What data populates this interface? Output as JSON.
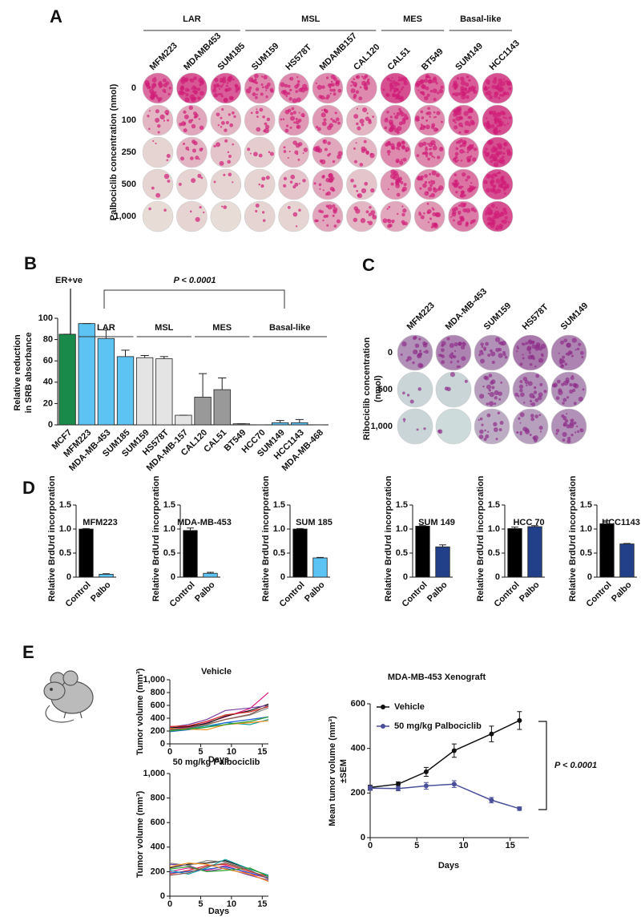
{
  "panel_labels": [
    "A",
    "B",
    "C",
    "D",
    "E"
  ],
  "panel_a": {
    "y_label": "Palbociclib concentration (nmol)",
    "concentrations": [
      "0",
      "100",
      "250",
      "500",
      "1,000"
    ],
    "groups": [
      {
        "name": "LAR",
        "cell_lines": [
          "MFM223",
          "MDAMB453",
          "SUM185"
        ]
      },
      {
        "name": "MSL",
        "cell_lines": [
          "SUM159",
          "HS578T",
          "MDAMB157",
          "CAL120"
        ]
      },
      {
        "name": "MES",
        "cell_lines": [
          "CAL51",
          "BT549"
        ]
      },
      {
        "name": "Basal-like",
        "cell_lines": [
          "SUM149",
          "HCC1143"
        ]
      }
    ]
  },
  "panel_c": {
    "y_label": [
      "Ribociclib concentration",
      "(nmol)"
    ],
    "concentrations": [
      "0",
      "500",
      "1,000"
    ],
    "cell_lines": [
      "MFM223",
      "MDA-MB-453",
      "SUM159",
      "HS578T",
      "SUM149"
    ]
  },
  "chart_data": [
    {
      "type": "bar",
      "y_label": [
        "Relative reduction",
        "in SRB absorbance"
      ],
      "er_label": "ER+ve",
      "p_value_label": "P < 0.0001",
      "groups": [
        "LAR",
        "MSL",
        "MES",
        "Basal-like"
      ],
      "categories": [
        "MCF7",
        "MFM223",
        "MDA-MB-453",
        "SUM185",
        "SUM159",
        "HS578T",
        "MDA-MB-157",
        "CAL120",
        "CAL51",
        "BT549",
        "HCC70",
        "SUM149",
        "HCC1143",
        "MDA-MB-468"
      ],
      "values": [
        85,
        95,
        81,
        64,
        63,
        62,
        9,
        26,
        33,
        1,
        0,
        2,
        2,
        0
      ],
      "errors": [
        0,
        0,
        8,
        6,
        2,
        2,
        0,
        22,
        11,
        0,
        0,
        2,
        3,
        0
      ],
      "colors": [
        "#1a8a4a",
        "#5cc3f2",
        "#5cc3f2",
        "#5cc3f2",
        "#e4e4e4",
        "#e4e4e4",
        "#e4e4e4",
        "#999999",
        "#999999",
        "#999999",
        "#5cc3f2",
        "#5cc3f2",
        "#5cc3f2",
        "#5cc3f2"
      ],
      "ylim": [
        0,
        100
      ],
      "yticks": [
        0,
        20,
        40,
        60,
        80,
        100
      ]
    },
    {
      "type": "bar",
      "title": "MFM223",
      "y_label": "Relative BrdUrd incorporation",
      "categories": [
        "Control",
        "Palbo"
      ],
      "values": [
        1.0,
        0.06
      ],
      "errors": [
        0.01,
        0.01
      ],
      "colors": [
        "#000000",
        "#5cc3f2"
      ],
      "ylim": [
        0,
        1.5
      ],
      "yticks": [
        0,
        0.5,
        {
          "value": 1,
          "label": "1.0"
        },
        1.5
      ]
    },
    {
      "type": "bar",
      "title": "MDA-MB-453",
      "y_label": "Relative BrdUrd incorporation",
      "categories": [
        "Control",
        "Palbo"
      ],
      "values": [
        0.97,
        0.08
      ],
      "errors": [
        0.05,
        0.02
      ],
      "colors": [
        "#000000",
        "#5cc3f2"
      ],
      "ylim": [
        0,
        1.5
      ],
      "yticks": [
        0,
        0.5,
        {
          "value": 1,
          "label": "1.0"
        },
        1.5
      ]
    },
    {
      "type": "bar",
      "title": "SUM 185",
      "y_label": "Relative BrdUrd incorporation",
      "categories": [
        "Control",
        "Palbo"
      ],
      "values": [
        1.0,
        0.4
      ],
      "errors": [
        0.01,
        0.01
      ],
      "colors": [
        "#000000",
        "#5cc3f2"
      ],
      "ylim": [
        0,
        1.5
      ],
      "yticks": [
        0,
        0.5,
        {
          "value": 1,
          "label": "1.0"
        },
        1.5
      ]
    },
    {
      "type": "bar",
      "title": "SUM 149",
      "y_label": "Relative BrdUrd incorporation",
      "categories": [
        "Control",
        "Palbo"
      ],
      "values": [
        1.06,
        0.63
      ],
      "errors": [
        0.01,
        0.04
      ],
      "colors": [
        "#000000",
        "#22408a"
      ],
      "ylim": [
        0,
        1.5
      ],
      "yticks": [
        0,
        0.5,
        {
          "value": 1,
          "label": "1.0"
        },
        1.5
      ]
    },
    {
      "type": "bar",
      "title": "HCC 70",
      "y_label": "Relative BrdUrd incorporation",
      "categories": [
        "Control",
        "Palbo"
      ],
      "values": [
        1.01,
        1.05
      ],
      "errors": [
        0.03,
        0.02
      ],
      "colors": [
        "#000000",
        "#22408a"
      ],
      "ylim": [
        0,
        1.5
      ],
      "yticks": [
        0,
        0.5,
        {
          "value": 1,
          "label": "1.0"
        },
        1.5
      ]
    },
    {
      "type": "bar",
      "title": "HCC1143",
      "y_label": "Relative BrdUrd incorporation",
      "categories": [
        "Control",
        "Palbo"
      ],
      "values": [
        1.11,
        0.69
      ],
      "errors": [
        0.07,
        0.01
      ],
      "colors": [
        "#000000",
        "#22408a"
      ],
      "ylim": [
        0,
        1.5
      ],
      "yticks": [
        0,
        0.5,
        {
          "value": 1,
          "label": "1.0"
        },
        1.5
      ]
    },
    {
      "type": "line",
      "title": "Vehicle",
      "x_label": "Days",
      "y_label": "Tumor volume (mm³)",
      "x": [
        0,
        3,
        6,
        9,
        13,
        16
      ],
      "xlim": [
        0,
        16
      ],
      "xticks": [
        0,
        5,
        10,
        15
      ],
      "ylim": [
        0,
        1000
      ],
      "yticks": [
        0,
        200,
        400,
        600,
        800,
        {
          "value": 1000,
          "label": "1,000"
        }
      ],
      "series": [
        {
          "color": "#e0218a",
          "values": [
            230,
            260,
            330,
            420,
            550,
            800
          ]
        },
        {
          "color": "#111111",
          "values": [
            250,
            270,
            320,
            430,
            520,
            620
          ]
        },
        {
          "color": "#7b3fa0",
          "values": [
            260,
            300,
            380,
            520,
            560,
            600
          ]
        },
        {
          "color": "#d62728",
          "values": [
            270,
            280,
            350,
            450,
            500,
            580
          ]
        },
        {
          "color": "#888888",
          "values": [
            200,
            240,
            310,
            380,
            450,
            560
          ]
        },
        {
          "color": "#17a2a2",
          "values": [
            210,
            240,
            280,
            330,
            300,
            380
          ]
        },
        {
          "color": "#1f5fd6",
          "values": [
            190,
            220,
            260,
            330,
            380,
            420
          ]
        },
        {
          "color": "#f28e1c",
          "values": [
            240,
            230,
            220,
            300,
            330,
            360
          ]
        },
        {
          "color": "#2ca02c",
          "values": [
            200,
            230,
            260,
            300,
            350,
            420
          ]
        },
        {
          "color": "#8c564b",
          "values": [
            220,
            250,
            300,
            380,
            460,
            600
          ]
        }
      ]
    },
    {
      "type": "line",
      "title": "50 mg/kg Palbociclib",
      "x_label": "Days",
      "y_label": "Tumor volume (mm³)",
      "x": [
        0,
        3,
        6,
        9,
        13,
        16
      ],
      "xlim": [
        0,
        16
      ],
      "xticks": [
        0,
        5,
        10,
        15
      ],
      "ylim": [
        0,
        1000
      ],
      "yticks": [
        0,
        200,
        400,
        600,
        800,
        {
          "value": 1000,
          "label": "1,000"
        }
      ],
      "series": [
        {
          "color": "#e0218a",
          "values": [
            200,
            230,
            210,
            250,
            180,
            150
          ]
        },
        {
          "color": "#111111",
          "values": [
            230,
            260,
            270,
            290,
            220,
            170
          ]
        },
        {
          "color": "#7b3fa0",
          "values": [
            260,
            250,
            200,
            230,
            170,
            130
          ]
        },
        {
          "color": "#d62728",
          "values": [
            180,
            210,
            250,
            260,
            200,
            160
          ]
        },
        {
          "color": "#888888",
          "values": [
            270,
            250,
            290,
            280,
            210,
            140
          ]
        },
        {
          "color": "#17a2a2",
          "values": [
            210,
            180,
            230,
            300,
            220,
            170
          ]
        },
        {
          "color": "#1f5fd6",
          "values": [
            190,
            200,
            220,
            240,
            190,
            150
          ]
        },
        {
          "color": "#f28e1c",
          "values": [
            240,
            270,
            260,
            220,
            180,
            120
          ]
        },
        {
          "color": "#2ca02c",
          "values": [
            220,
            240,
            200,
            210,
            230,
            160
          ]
        },
        {
          "color": "#8c564b",
          "values": [
            170,
            190,
            240,
            270,
            210,
            140
          ]
        }
      ]
    },
    {
      "type": "line",
      "title": "MDA-MB-453 Xenograft",
      "x_label": "Days",
      "y_label": [
        "Mean tumor volume (mm³)",
        "±SEM"
      ],
      "p_value_label": "P < 0.0001",
      "legend": true,
      "x": [
        0,
        3,
        6,
        9,
        13,
        16
      ],
      "xlim": [
        0,
        17
      ],
      "xticks": [
        0,
        5,
        10,
        15
      ],
      "ylim": [
        0,
        600
      ],
      "yticks": [
        0,
        200,
        400,
        600
      ],
      "series": [
        {
          "name": "Vehicle",
          "color": "#111111",
          "values": [
            225,
            240,
            295,
            390,
            465,
            525
          ],
          "errors": [
            10,
            10,
            20,
            30,
            35,
            40
          ]
        },
        {
          "name": "50 mg/kg Palbociclib",
          "color": "#4a4f9a",
          "values": [
            222,
            220,
            232,
            240,
            168,
            130
          ],
          "errors": [
            10,
            10,
            15,
            15,
            12,
            8
          ]
        }
      ]
    }
  ]
}
